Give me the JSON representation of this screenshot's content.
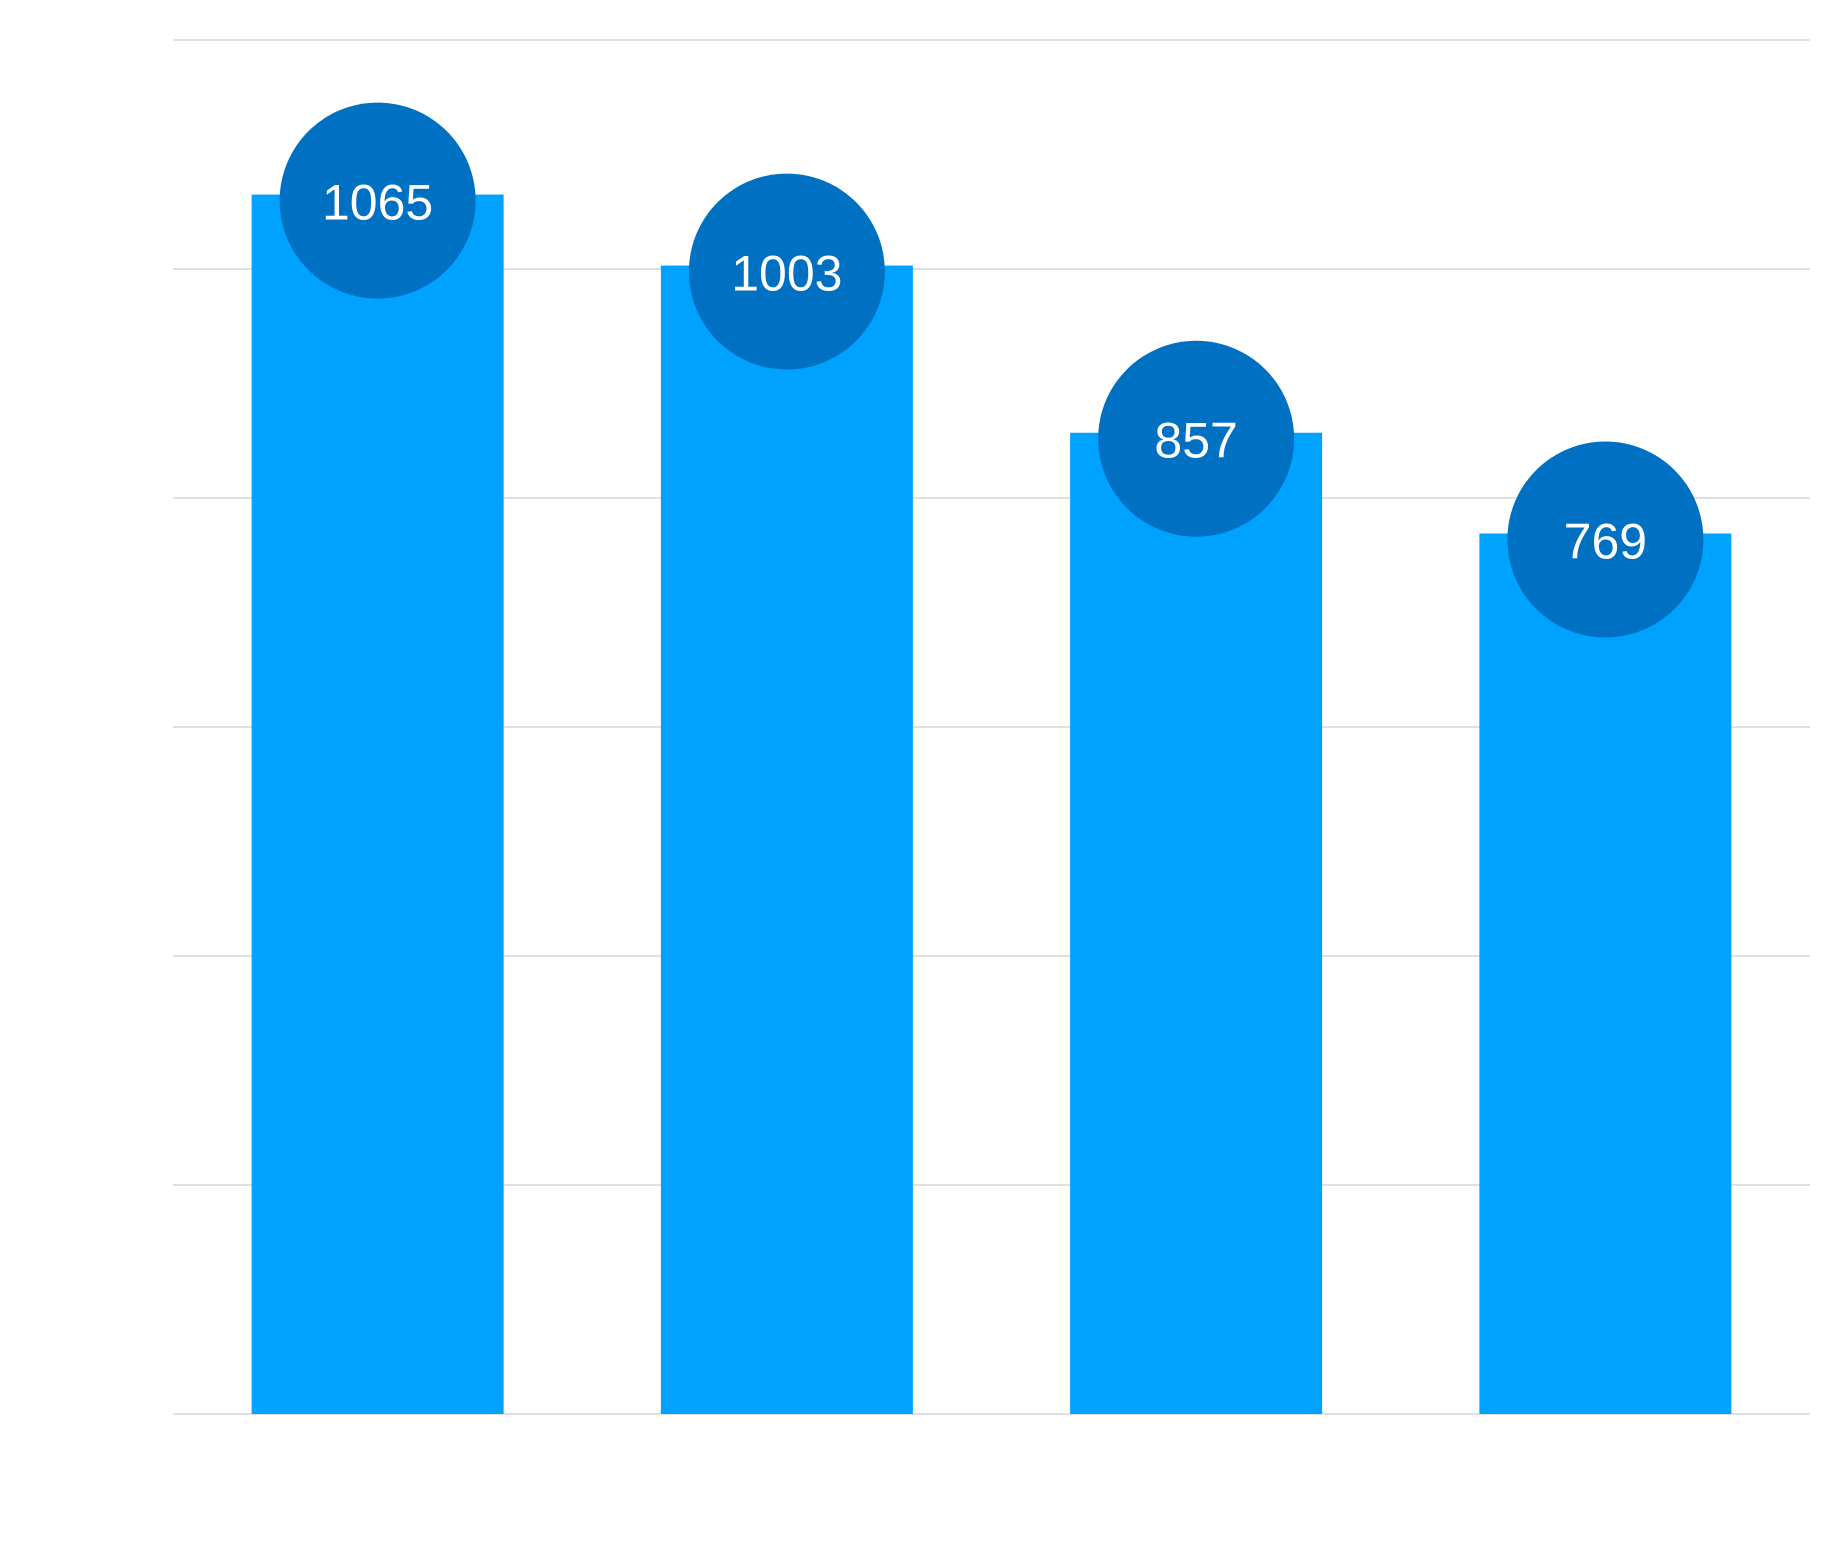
{
  "colors": {
    "bar": "#00a2ff",
    "badge": "#0070c3",
    "grid": "#d6d6d6",
    "label": "#ffffff",
    "background": "#ffffff"
  },
  "chart_data": {
    "type": "bar",
    "categories": [
      "",
      "",
      "",
      ""
    ],
    "values": [
      1065,
      1003,
      857,
      769
    ],
    "data_labels": [
      "1065",
      "1003",
      "857",
      "769"
    ],
    "title": "",
    "xlabel": "",
    "ylabel": "",
    "ylim": [
      0,
      1200
    ],
    "yticks": [
      0,
      200,
      400,
      600,
      800,
      1000,
      1200
    ],
    "grid": true,
    "legend": "none",
    "label_style": "circle-badge-at-bar-top"
  }
}
